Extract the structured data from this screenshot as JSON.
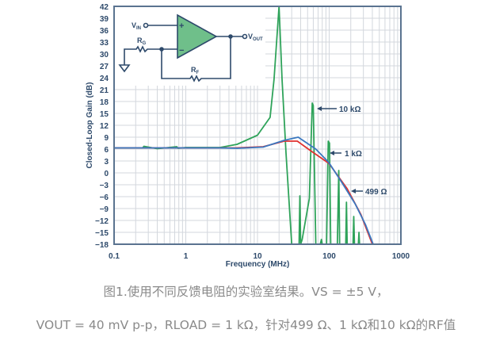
{
  "chart_data": {
    "type": "line",
    "xlabel": "Frequency (MHz)",
    "ylabel": "Closed-Loop Gain (dB)",
    "x_scale": "log",
    "xlim": [
      0.1,
      1000
    ],
    "ylim": [
      -18,
      42
    ],
    "x_ticks": [
      "0.1",
      "1",
      "10",
      "100",
      "1000"
    ],
    "y_ticks": [
      42,
      39,
      36,
      33,
      30,
      27,
      24,
      21,
      18,
      15,
      12,
      9,
      6,
      3,
      0,
      -3,
      -6,
      -9,
      -12,
      -15,
      -18
    ],
    "grid": true,
    "series": [
      {
        "name": "499 Ω",
        "color": "#e0312f",
        "x": [
          0.1,
          1,
          3,
          5,
          12,
          23.6,
          36,
          55,
          99,
          178,
          275,
          400
        ],
        "y": [
          6.3,
          6.3,
          6.3,
          6.3,
          6.6,
          8.0,
          8.0,
          5.6,
          2.4,
          -4,
          -10.4,
          -18
        ]
      },
      {
        "name": "1 kΩ",
        "color": "#3b78c0",
        "x": [
          0.1,
          1,
          3,
          5.2,
          12,
          23.6,
          37,
          65,
          99,
          150,
          230,
          320,
          410
        ],
        "y": [
          6.3,
          6.3,
          6.3,
          6.2,
          6.5,
          8.2,
          9.0,
          6.0,
          2.6,
          -2.4,
          -7.8,
          -13,
          -18
        ]
      },
      {
        "name": "10 kΩ",
        "color": "#2fa35a",
        "x": [
          0.1,
          0.25,
          0.26,
          0.4,
          0.75,
          0.78,
          1,
          3,
          5.2,
          10,
          15,
          17,
          20,
          22,
          25,
          30,
          38,
          39,
          40,
          42,
          53,
          58,
          60,
          65,
          75,
          78,
          80,
          92,
          97,
          101,
          105,
          130,
          136,
          140,
          170,
          174,
          178,
          215,
          220,
          225,
          255,
          260,
          265
        ],
        "y": [
          6.3,
          6.3,
          6.7,
          6.1,
          6.6,
          6.2,
          6.4,
          6.4,
          7.2,
          9.5,
          14,
          23.6,
          42,
          23.6,
          5,
          -18,
          -18,
          -5.8,
          -18,
          -16.8,
          -6.4,
          17.6,
          17,
          -18,
          -18,
          -16.8,
          -18,
          -18,
          8,
          7.5,
          -18,
          -18,
          0.6,
          -18,
          -18,
          -7.4,
          -18,
          -18,
          -11,
          -18,
          -18,
          -15,
          -18
        ]
      }
    ],
    "annotations": [
      "10 kΩ",
      "1 kΩ",
      "499 Ω"
    ]
  },
  "schematic": {
    "vin": "V",
    "vin_sub": "IN",
    "vout": "V",
    "vout_sub": "OUT",
    "rg": "R",
    "rg_sub": "G",
    "rf": "R",
    "rf_sub": "F",
    "plus": "+",
    "minus": "−"
  },
  "caption": {
    "line1": "图1.使用不同反馈电阻的实验室结果。VS = ±5 V，",
    "line2": "VOUT = 40 mV p-p，RLOAD = 1 kΩ，针对499 Ω、1 kΩ和10 kΩ的RF值"
  },
  "colors": {
    "axis": "#5a7390",
    "grid": "#d3d7dd",
    "opamp": "#6fbf8a",
    "text": "#2e4a6b"
  }
}
